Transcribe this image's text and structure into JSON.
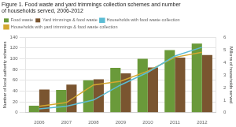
{
  "chart_data": {
    "type": "bar",
    "title": [
      "Figure 1. Food waste and yard trimmings collection schemes and number",
      "of households served, 2006-2012"
    ],
    "categories": [
      "2006",
      "2007",
      "2008",
      "2009",
      "2010",
      "2011",
      "2012"
    ],
    "series": [
      {
        "name": "Food waste",
        "color": "#6a9a3a",
        "values": [
          13,
          42,
          60,
          83,
          100,
          116,
          128
        ]
      },
      {
        "name": "Yard trimmings & food waste",
        "color": "#7a5530",
        "values": [
          43,
          52,
          62,
          73,
          84,
          102,
          107
        ]
      },
      {
        "name": "Households with food waste collection",
        "type": "line",
        "axis": "y2",
        "color": "#5bbcd4",
        "values": [
          0.3,
          0.5,
          1.0,
          2.2,
          3.2,
          4.5,
          5.2
        ]
      },
      {
        "name": "Households with yard trimmings & food waste collection",
        "type": "line",
        "axis": "y2",
        "color": "#d4a830",
        "values": [
          0.5,
          0.8,
          2.2,
          2.5,
          3.3,
          4.4,
          4.8
        ]
      }
    ],
    "ylabel": "Number of local authority schemes",
    "y2label": "Millions of households served",
    "ylim": [
      0,
      140
    ],
    "yticks": [
      0,
      20,
      40,
      60,
      80,
      100,
      120,
      140
    ],
    "y2lim": [
      0,
      6
    ],
    "y2ticks": [
      0,
      1,
      2,
      3,
      4,
      5,
      6
    ],
    "grid": true,
    "legend": "upper left"
  }
}
